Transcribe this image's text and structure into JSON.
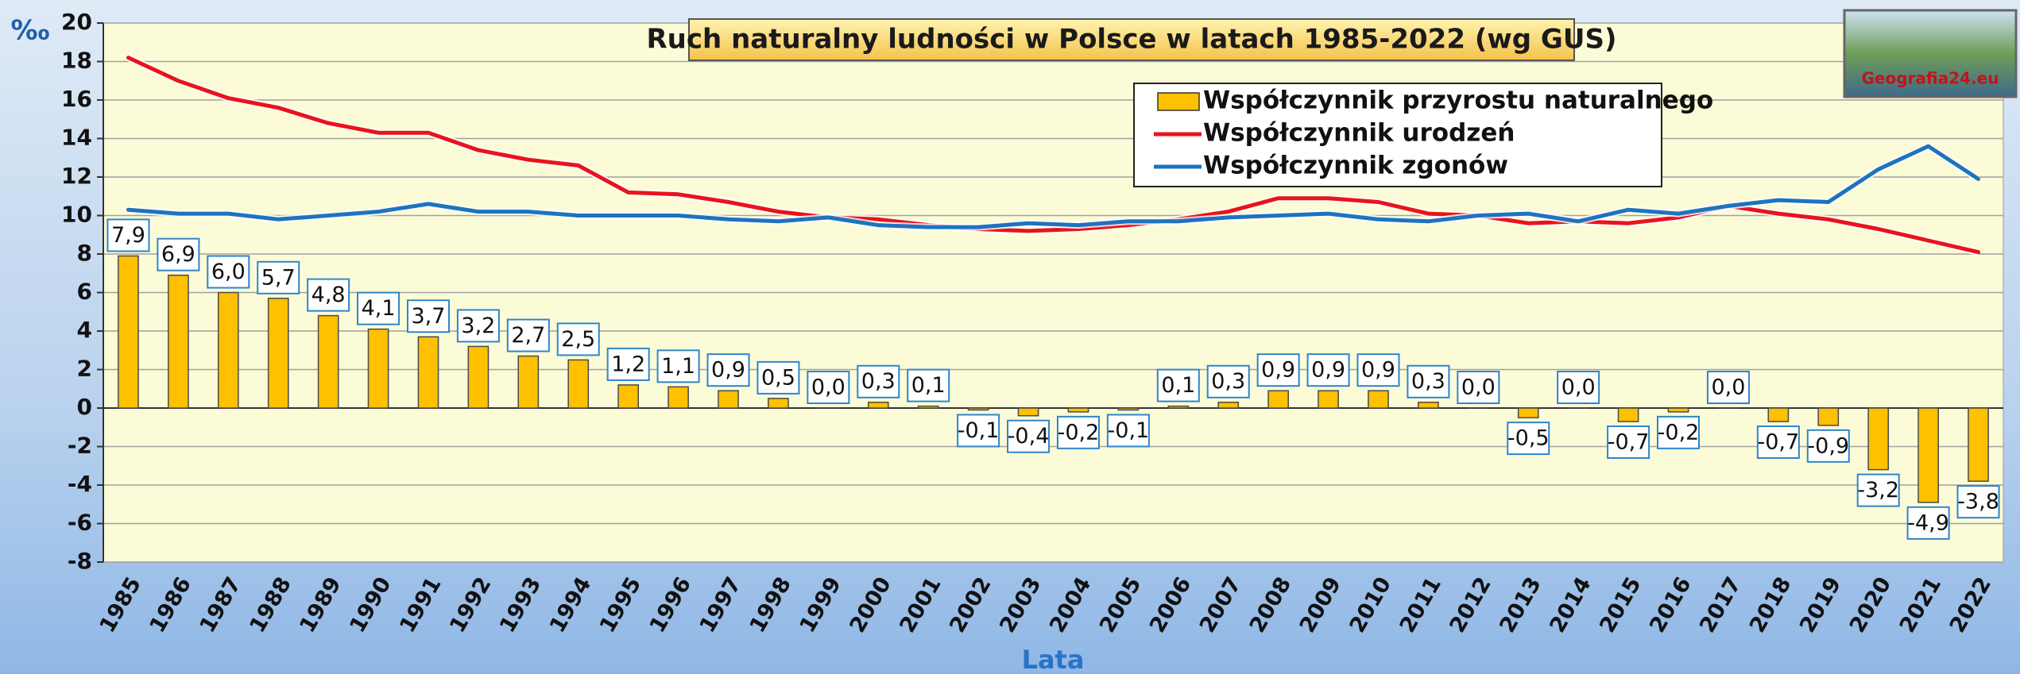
{
  "chart_data": {
    "type": "bar-line",
    "title": "Ruch naturalny ludności w Polsce w latach 1985-2022 (wg GUS)",
    "y_label": "‰",
    "x_label": "Lata",
    "logo": "Geografia24.eu",
    "categories": [
      "1985",
      "1986",
      "1987",
      "1988",
      "1989",
      "1990",
      "1991",
      "1992",
      "1993",
      "1994",
      "1995",
      "1996",
      "1997",
      "1998",
      "1999",
      "2000",
      "2001",
      "2002",
      "2003",
      "2004",
      "2005",
      "2006",
      "2007",
      "2008",
      "2009",
      "2010",
      "2011",
      "2012",
      "2013",
      "2014",
      "2015",
      "2016",
      "2017",
      "2018",
      "2019",
      "2020",
      "2021",
      "2022"
    ],
    "series": [
      {
        "name": "Współczynnik przyrostu naturalnego",
        "type": "bar",
        "color": "#ffc000",
        "values": [
          7.9,
          6.9,
          6.0,
          5.7,
          4.8,
          4.1,
          3.7,
          3.2,
          2.7,
          2.5,
          1.2,
          1.1,
          0.9,
          0.5,
          0.0,
          0.3,
          0.1,
          -0.1,
          -0.4,
          -0.2,
          -0.1,
          0.1,
          0.3,
          0.9,
          0.9,
          0.9,
          0.3,
          0.0,
          -0.5,
          0.0,
          -0.7,
          -0.2,
          0.0,
          -0.7,
          -0.9,
          -3.2,
          -4.9,
          -3.8
        ],
        "value_labels": [
          "7,9",
          "6,9",
          "6,0",
          "5,7",
          "4,8",
          "4,1",
          "3,7",
          "3,2",
          "2,7",
          "2,5",
          "1,2",
          "1,1",
          "0,9",
          "0,5",
          "0,0",
          "0,3",
          "0,1",
          "-0,1",
          "-0,4",
          "-0,2",
          "-0,1",
          "0,1",
          "0,3",
          "0,9",
          "0,9",
          "0,9",
          "0,3",
          "0,0",
          "-0,5",
          "0,0",
          "-0,7",
          "-0,2",
          "0,0",
          "-0,7",
          "-0,9",
          "-3,2",
          "-4,9",
          "-3,8"
        ]
      },
      {
        "name": "Współczynnik urodzeń",
        "type": "line",
        "color": "#e8141a",
        "values": [
          18.2,
          17.0,
          16.1,
          15.6,
          14.8,
          14.3,
          14.3,
          13.4,
          12.9,
          12.6,
          11.2,
          11.1,
          10.7,
          10.2,
          9.9,
          9.8,
          9.5,
          9.3,
          9.2,
          9.3,
          9.5,
          9.8,
          10.2,
          10.9,
          10.9,
          10.7,
          10.1,
          10.0,
          9.6,
          9.7,
          9.6,
          9.9,
          10.5,
          10.1,
          9.8,
          9.3,
          8.7,
          8.1
        ]
      },
      {
        "name": "Współczynnik zgonów",
        "type": "line",
        "color": "#1e73be",
        "values": [
          10.3,
          10.1,
          10.1,
          9.8,
          10.0,
          10.2,
          10.6,
          10.2,
          10.2,
          10.0,
          10.0,
          10.0,
          9.8,
          9.7,
          9.9,
          9.5,
          9.4,
          9.4,
          9.6,
          9.5,
          9.7,
          9.7,
          9.9,
          10.0,
          10.1,
          9.8,
          9.7,
          10.0,
          10.1,
          9.7,
          10.3,
          10.1,
          10.5,
          10.8,
          10.7,
          12.4,
          13.6,
          11.9
        ]
      }
    ],
    "ylim": [
      -8,
      20
    ],
    "yticks": [
      -8,
      -6,
      -4,
      -2,
      0,
      2,
      4,
      6,
      8,
      10,
      12,
      14,
      16,
      18,
      20
    ],
    "grid": true,
    "legend": "upper right"
  }
}
